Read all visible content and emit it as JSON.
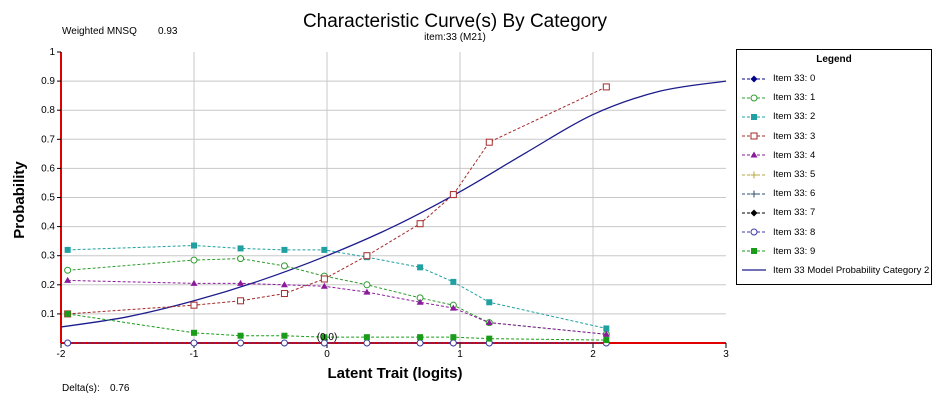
{
  "header": {
    "weighted_label": "Weighted MNSQ",
    "weighted_value": "0.93",
    "delta_label": "Delta(s):",
    "delta_value": "0.76"
  },
  "chart_data": {
    "type": "line",
    "title": "Characteristic Curve(s) By Category",
    "subtitle": "item:33 (M21)",
    "xlabel": "Latent Trait (logits)",
    "ylabel": "Probability",
    "xlim": [
      -2,
      3
    ],
    "ylim": [
      0,
      1
    ],
    "x_ticks": [
      "-2",
      "-1",
      "0",
      "1",
      "2",
      "3"
    ],
    "y_ticks": [
      "0.1",
      "0.2",
      "0.3",
      "0.4",
      "0.5",
      "0.6",
      "0.7",
      "0.8",
      "0.9",
      "1"
    ],
    "origin_label": "(0,0)",
    "grid": true,
    "legend_title": "Legend",
    "legend_position": "right",
    "x": [
      -1.95,
      -1.0,
      -0.65,
      -0.32,
      -0.02,
      0.3,
      0.7,
      0.95,
      1.22,
      2.1
    ],
    "series": [
      {
        "name": "Item 33: 0",
        "color": "#00008b",
        "marker": "diamond",
        "values": [
          0.0,
          0.0,
          0.0,
          0.0,
          0.0,
          0.0,
          0.0,
          0.0,
          0.0,
          0.0
        ]
      },
      {
        "name": "Item 33: 1",
        "color": "#2e9b2e",
        "marker": "circle-open",
        "values": [
          0.25,
          0.285,
          0.29,
          0.265,
          0.23,
          0.2,
          0.155,
          0.13,
          0.07,
          0.03
        ]
      },
      {
        "name": "Item 33: 2",
        "color": "#20a0a0",
        "marker": "square",
        "values": [
          0.32,
          0.335,
          0.325,
          0.32,
          0.32,
          0.295,
          0.26,
          0.21,
          0.14,
          0.05
        ]
      },
      {
        "name": "Item 33: 3",
        "color": "#a52a2a",
        "marker": "square-open",
        "values": [
          0.1,
          0.13,
          0.145,
          0.17,
          0.22,
          0.3,
          0.41,
          0.51,
          0.69,
          0.88
        ]
      },
      {
        "name": "Item 33: 4",
        "color": "#8b1a9b",
        "marker": "triangle",
        "values": [
          0.215,
          0.205,
          0.205,
          0.2,
          0.195,
          0.175,
          0.14,
          0.12,
          0.07,
          0.03
        ]
      },
      {
        "name": "Item 33: 5",
        "color": "#b5a642",
        "marker": "plus",
        "values": [
          0.0,
          0.0,
          0.0,
          0.0,
          0.0,
          0.0,
          0.0,
          0.0,
          0.0,
          0.0
        ]
      },
      {
        "name": "Item 33: 6",
        "color": "#2f4f6f",
        "marker": "plus",
        "values": [
          0.0,
          0.0,
          0.0,
          0.0,
          0.0,
          0.0,
          0.0,
          0.0,
          0.0,
          0.0
        ]
      },
      {
        "name": "Item 33: 7",
        "color": "#000000",
        "marker": "diamond",
        "values": [
          0.0,
          0.0,
          0.0,
          0.0,
          0.0,
          0.0,
          0.0,
          0.0,
          0.0,
          0.0
        ]
      },
      {
        "name": "Item 33: 8",
        "color": "#3a3aa8",
        "marker": "circle-open",
        "values": [
          0.0,
          0.0,
          0.0,
          0.0,
          0.0,
          0.0,
          0.0,
          0.0,
          0.0,
          0.0
        ]
      },
      {
        "name": "Item 33: 9",
        "color": "#1a9b1a",
        "marker": "square",
        "values": [
          0.1,
          0.035,
          0.025,
          0.025,
          0.02,
          0.02,
          0.02,
          0.02,
          0.015,
          0.01
        ]
      }
    ],
    "model_curve": {
      "name": "Item 33 Model Probability Category 2",
      "color": "#1c1c8c",
      "x": [
        -2.0,
        -1.5,
        -1.0,
        -0.5,
        0.0,
        0.5,
        1.0,
        1.5,
        2.0,
        2.5,
        3.0
      ],
      "values": [
        0.055,
        0.09,
        0.145,
        0.215,
        0.3,
        0.4,
        0.52,
        0.655,
        0.785,
        0.865,
        0.9
      ]
    }
  }
}
